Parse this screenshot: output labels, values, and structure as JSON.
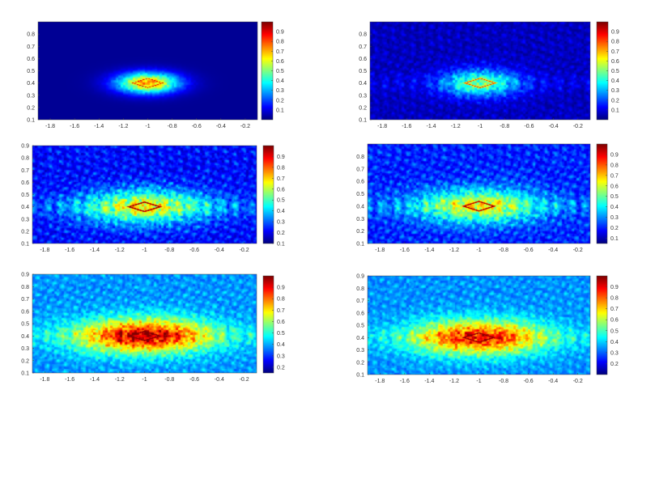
{
  "chart_data": [
    {
      "type": "heatmap",
      "title": "",
      "xlabel": "",
      "ylabel": "",
      "xlim": [
        -1.9,
        -0.1
      ],
      "ylim": [
        0.1,
        0.9
      ],
      "xticks": [
        -1.8,
        -1.6,
        -1.4,
        -1.2,
        -1,
        -0.8,
        -0.6,
        -0.4,
        -0.2
      ],
      "xtick_labels": [
        "-1.8",
        "-1.6",
        "-1.4",
        "-1.2",
        "-1",
        "-0.8",
        "-0.6",
        "-0.4",
        "-0.2"
      ],
      "yticks": [
        0.1,
        0.2,
        0.3,
        0.4,
        0.5,
        0.6,
        0.7,
        0.8
      ],
      "ytick_labels": [
        "0.1",
        "0.2",
        "0.3",
        "0.4",
        "0.5",
        "0.6",
        "0.7",
        "0.8"
      ],
      "colorbar": {
        "colormap": "jet",
        "range": [
          0.0,
          1.0
        ],
        "ticks": [
          0.1,
          0.2,
          0.3,
          0.4,
          0.5,
          0.6,
          0.7,
          0.8,
          0.9
        ],
        "tick_labels": [
          "0.1",
          "0.2",
          "0.3",
          "0.4",
          "0.5",
          "0.6",
          "0.7",
          "0.8",
          "0.9"
        ]
      },
      "target": {
        "center_x": -1.0,
        "center_y": 0.4,
        "half_width": 0.13,
        "half_height": 0.04
      },
      "field": {
        "background": 0.02,
        "noise": 0.0,
        "peak": 0.8,
        "blob_x": 0.18,
        "blob_y": 0.06,
        "outline": 0.65
      }
    },
    {
      "type": "heatmap",
      "title": "",
      "xlabel": "",
      "ylabel": "",
      "xlim": [
        -1.9,
        -0.1
      ],
      "ylim": [
        0.1,
        0.9
      ],
      "xticks": [
        -1.8,
        -1.6,
        -1.4,
        -1.2,
        -1,
        -0.8,
        -0.6,
        -0.4,
        -0.2
      ],
      "xtick_labels": [
        "-1.8",
        "-1.6",
        "-1.4",
        "-1.2",
        "-1",
        "-0.8",
        "-0.6",
        "-0.4",
        "-0.2"
      ],
      "yticks": [
        0.1,
        0.2,
        0.3,
        0.4,
        0.5,
        0.6,
        0.7,
        0.8
      ],
      "ytick_labels": [
        "0.1",
        "0.2",
        "0.3",
        "0.4",
        "0.5",
        "0.6",
        "0.7",
        "0.8"
      ],
      "colorbar": {
        "colormap": "jet",
        "range": [
          0.0,
          1.0
        ],
        "ticks": [
          0.1,
          0.2,
          0.3,
          0.4,
          0.5,
          0.6,
          0.7,
          0.8,
          0.9
        ],
        "tick_labels": [
          "0.1",
          "0.2",
          "0.3",
          "0.4",
          "0.5",
          "0.6",
          "0.7",
          "0.8",
          "0.9"
        ]
      },
      "target": {
        "center_x": -1.0,
        "center_y": 0.4,
        "half_width": 0.13,
        "half_height": 0.04
      },
      "field": {
        "background": 0.06,
        "noise": 0.12,
        "peak": 0.45,
        "blob_x": 0.22,
        "blob_y": 0.08,
        "outline": 0.7
      }
    },
    {
      "type": "heatmap",
      "title": "",
      "xlabel": "",
      "ylabel": "",
      "xlim": [
        -1.9,
        -0.1
      ],
      "ylim": [
        0.1,
        0.9
      ],
      "xticks": [
        -1.8,
        -1.6,
        -1.4,
        -1.2,
        -1,
        -0.8,
        -0.6,
        -0.4,
        -0.2
      ],
      "xtick_labels": [
        "-1.8",
        "-1.6",
        "-1.4",
        "-1.2",
        "-1",
        "-0.8",
        "-0.6",
        "-0.4",
        "-0.2"
      ],
      "yticks": [
        0.1,
        0.2,
        0.3,
        0.4,
        0.5,
        0.6,
        0.7,
        0.8,
        0.9
      ],
      "ytick_labels": [
        "0.1",
        "0.2",
        "0.3",
        "0.4",
        "0.5",
        "0.6",
        "0.7",
        "0.8",
        "0.9"
      ],
      "colorbar": {
        "colormap": "jet",
        "range": [
          0.1,
          1.0
        ],
        "ticks": [
          0.1,
          0.2,
          0.3,
          0.4,
          0.5,
          0.6,
          0.7,
          0.8,
          0.9
        ],
        "tick_labels": [
          "0.1",
          "0.2",
          "0.3",
          "0.4",
          "0.5",
          "0.6",
          "0.7",
          "0.8",
          "0.9"
        ]
      },
      "target": {
        "center_x": -1.0,
        "center_y": 0.4,
        "half_width": 0.13,
        "half_height": 0.04
      },
      "field": {
        "background": 0.22,
        "noise": 0.18,
        "peak": 0.45,
        "blob_x": 0.35,
        "blob_y": 0.1,
        "outline": 0.97
      }
    },
    {
      "type": "heatmap",
      "title": "",
      "xlabel": "",
      "ylabel": "",
      "xlim": [
        -1.9,
        -0.1
      ],
      "ylim": [
        0.1,
        0.9
      ],
      "xticks": [
        -1.8,
        -1.6,
        -1.4,
        -1.2,
        -1,
        -0.8,
        -0.6,
        -0.4,
        -0.2
      ],
      "xtick_labels": [
        "-1.8",
        "-1.6",
        "-1.4",
        "-1.2",
        "-1",
        "-0.8",
        "-0.6",
        "-0.4",
        "-0.2"
      ],
      "yticks": [
        0.1,
        0.2,
        0.3,
        0.4,
        0.5,
        0.6,
        0.7,
        0.8
      ],
      "ytick_labels": [
        "0.1",
        "0.2",
        "0.3",
        "0.4",
        "0.5",
        "0.6",
        "0.7",
        "0.8"
      ],
      "colorbar": {
        "colormap": "jet",
        "range": [
          0.05,
          1.0
        ],
        "ticks": [
          0.1,
          0.2,
          0.3,
          0.4,
          0.5,
          0.6,
          0.7,
          0.8,
          0.9
        ],
        "tick_labels": [
          "0.1",
          "0.2",
          "0.3",
          "0.4",
          "0.5",
          "0.6",
          "0.7",
          "0.8",
          "0.9"
        ]
      },
      "target": {
        "center_x": -1.0,
        "center_y": 0.4,
        "half_width": 0.13,
        "half_height": 0.04
      },
      "field": {
        "background": 0.2,
        "noise": 0.18,
        "peak": 0.45,
        "blob_x": 0.35,
        "blob_y": 0.1,
        "outline": 0.92
      }
    },
    {
      "type": "heatmap",
      "title": "",
      "xlabel": "",
      "ylabel": "",
      "xlim": [
        -1.9,
        -0.1
      ],
      "ylim": [
        0.1,
        0.9
      ],
      "xticks": [
        -1.8,
        -1.6,
        -1.4,
        -1.2,
        -1,
        -0.8,
        -0.6,
        -0.4,
        -0.2
      ],
      "xtick_labels": [
        "-1.8",
        "-1.6",
        "-1.4",
        "-1.2",
        "-1",
        "-0.8",
        "-0.6",
        "-0.4",
        "-0.2"
      ],
      "yticks": [
        0.1,
        0.2,
        0.3,
        0.4,
        0.5,
        0.6,
        0.7,
        0.8,
        0.9
      ],
      "ytick_labels": [
        "0.1",
        "0.2",
        "0.3",
        "0.4",
        "0.5",
        "0.6",
        "0.7",
        "0.8",
        "0.9"
      ],
      "colorbar": {
        "colormap": "jet",
        "range": [
          0.15,
          1.0
        ],
        "ticks": [
          0.2,
          0.3,
          0.4,
          0.5,
          0.6,
          0.7,
          0.8,
          0.9
        ],
        "tick_labels": [
          "0.2",
          "0.3",
          "0.4",
          "0.5",
          "0.6",
          "0.7",
          "0.8",
          "0.9"
        ]
      },
      "target": {
        "center_x": -1.0,
        "center_y": 0.4,
        "half_width": 0.13,
        "half_height": 0.04
      },
      "field": {
        "background": 0.38,
        "noise": 0.14,
        "peak": 0.6,
        "blob_x": 0.38,
        "blob_y": 0.1,
        "outline": 1.0
      }
    },
    {
      "type": "heatmap",
      "title": "",
      "xlabel": "",
      "ylabel": "",
      "xlim": [
        -1.9,
        -0.1
      ],
      "ylim": [
        0.1,
        0.9
      ],
      "xticks": [
        -1.8,
        -1.6,
        -1.4,
        -1.2,
        -1,
        -0.8,
        -0.6,
        -0.4,
        -0.2
      ],
      "xtick_labels": [
        "-1.8",
        "-1.6",
        "-1.4",
        "-1.2",
        "-1",
        "-0.8",
        "-0.6",
        "-0.4",
        "-0.2"
      ],
      "yticks": [
        0.1,
        0.2,
        0.3,
        0.4,
        0.5,
        0.6,
        0.7,
        0.8,
        0.9
      ],
      "ytick_labels": [
        "0.1",
        "0.2",
        "0.3",
        "0.4",
        "0.5",
        "0.6",
        "0.7",
        "0.8",
        "0.9"
      ],
      "colorbar": {
        "colormap": "jet",
        "range": [
          0.1,
          1.0
        ],
        "ticks": [
          0.2,
          0.3,
          0.4,
          0.5,
          0.6,
          0.7,
          0.8,
          0.9
        ],
        "tick_labels": [
          "0.2",
          "0.3",
          "0.4",
          "0.5",
          "0.6",
          "0.7",
          "0.8",
          "0.9"
        ]
      },
      "target": {
        "center_x": -1.0,
        "center_y": 0.4,
        "half_width": 0.13,
        "half_height": 0.04
      },
      "field": {
        "background": 0.34,
        "noise": 0.14,
        "peak": 0.58,
        "blob_x": 0.38,
        "blob_y": 0.1,
        "outline": 0.96
      }
    }
  ]
}
